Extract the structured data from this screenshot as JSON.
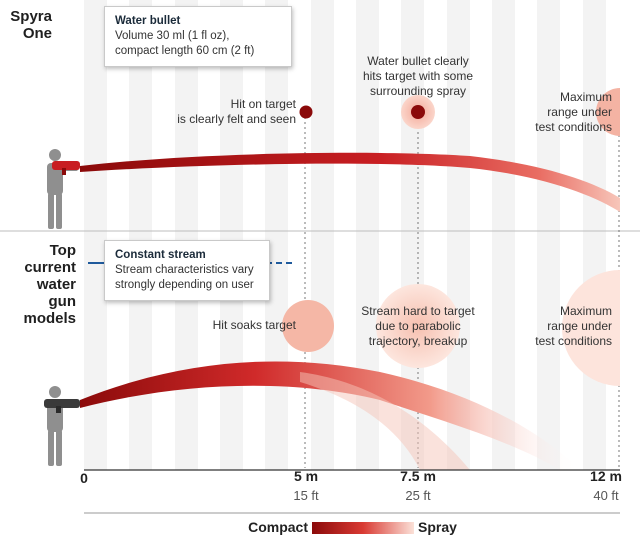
{
  "rows": {
    "spyra": {
      "label_line1": "Spyra",
      "label_line2": "One",
      "box_title": "Water bullet",
      "box_line1": "Volume 30 ml (1 fl oz),",
      "box_line2": "compact length 60 cm (2 ft)",
      "note1_line1": "Hit on target",
      "note1_line2": "is clearly felt and seen",
      "note2_line1": "Water bullet clearly",
      "note2_line2": "hits target with some",
      "note2_line3": "surrounding spray",
      "note3_line1": "Maximum",
      "note3_line2": "range under",
      "note3_line3": "test conditions"
    },
    "others": {
      "label_line1": "Top",
      "label_line2": "current",
      "label_line3": "water",
      "label_line4": "gun",
      "label_line5": "models",
      "box_title": "Constant stream",
      "box_line1": "Stream characteristics vary",
      "box_line2": "strongly depending on user",
      "note1": "Hit soaks target",
      "note2_line1": "Stream hard to target",
      "note2_line2": "due to parabolic",
      "note2_line3": "trajectory, breakup",
      "note3_line1": "Maximum",
      "note3_line2": "range under",
      "note3_line3": "test conditions"
    }
  },
  "axis": {
    "ticks": [
      {
        "m": "0",
        "ft": ""
      },
      {
        "m": "5 m",
        "ft": "15 ft"
      },
      {
        "m": "7.5 m",
        "ft": "25 ft"
      },
      {
        "m": "12 m",
        "ft": "40 ft"
      }
    ]
  },
  "legend": {
    "left": "Compact",
    "right": "Spray"
  },
  "colors": {
    "dark_red": "#8b0a0a",
    "red": "#d7262a",
    "light_red": "#f5b8a6",
    "pale": "#fbe1d8",
    "stripe": "#f2f2f2",
    "figure": "#8f8f8f",
    "blue": "#1f5a9c"
  },
  "icons": [
    "person-icon",
    "water-gun-icon",
    "bullet-icon",
    "stream-icon"
  ]
}
